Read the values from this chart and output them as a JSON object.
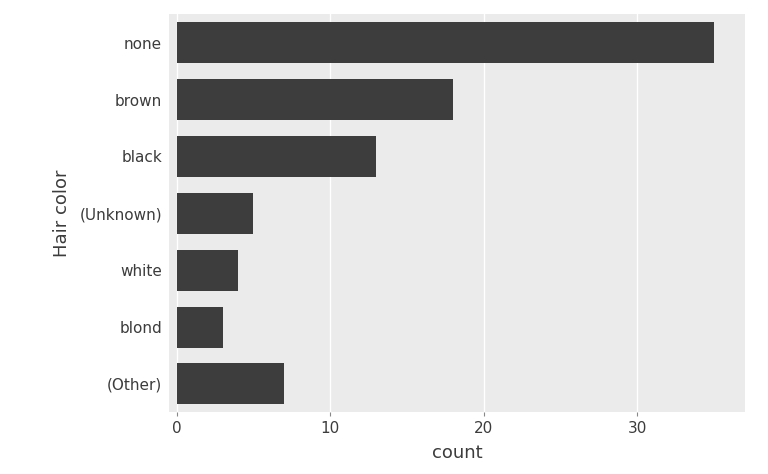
{
  "categories": [
    "(Other)",
    "blond",
    "white",
    "(Unknown)",
    "black",
    "brown",
    "none"
  ],
  "values": [
    7,
    3,
    4,
    5,
    13,
    18,
    35
  ],
  "bar_color": "#3d3d3d",
  "xlabel": "count",
  "ylabel": "Hair color",
  "xlim": [
    -0.5,
    37
  ],
  "xticks": [
    0,
    10,
    20,
    30
  ],
  "figure_bg": "#ffffff",
  "panel_bg": "#ebebeb",
  "grid_color": "#ffffff",
  "bar_height": 0.72,
  "axis_label_fontsize": 13,
  "tick_fontsize": 11,
  "font_color": "#3c3c3c"
}
